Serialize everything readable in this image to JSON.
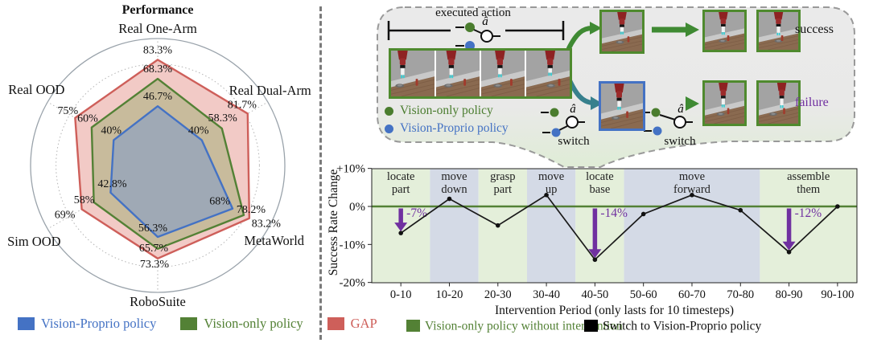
{
  "chart_data": [
    {
      "type": "radar",
      "title": "Performance",
      "axes": [
        "Real One-Arm",
        "Real Dual-Arm",
        "MetaWorld",
        "RoboSuite",
        "Sim OOD",
        "Real OOD"
      ],
      "max": 100,
      "series": [
        {
          "name": "Vision-Proprio policy",
          "color": "#4472C4",
          "fill": "#9FA9B5",
          "values": [
            46.7,
            40,
            68,
            56.3,
            42.8,
            40
          ],
          "value_labels": [
            "46.7%",
            "40%",
            "68%",
            "56.3%",
            "42.8%",
            "40%"
          ]
        },
        {
          "name": "Vision-only policy",
          "color": "#538135",
          "fill": "#C8BB9C",
          "values": [
            68.3,
            58.3,
            78.2,
            65.7,
            58,
            60
          ],
          "value_labels": [
            "68.3%",
            "58.3%",
            "78.2%",
            "65.7%",
            "58%",
            "60%"
          ]
        },
        {
          "name": "GAP",
          "color": "#CE5F5A",
          "fill": "#F2CAC6",
          "values": [
            83.3,
            81.7,
            83.2,
            73.3,
            69,
            75
          ],
          "value_labels": [
            "83.3%",
            "81.7%",
            "83.2%",
            "73.3%",
            "69%",
            "75%"
          ]
        }
      ],
      "label_offsets": [
        [
          [
            0,
            -8
          ],
          [
            -4,
            -8
          ],
          [
            -16,
            -5
          ],
          [
            -6,
            -7
          ],
          [
            2,
            -7
          ],
          [
            -3,
            -8
          ]
        ],
        [
          [
            0,
            -8
          ],
          [
            1,
            -9
          ],
          [
            9,
            -3
          ],
          [
            -5,
            3
          ],
          [
            -12,
            1
          ],
          [
            -5,
            -7
          ]
        ],
        [
          [
            0,
            -8
          ],
          [
            -7,
            -7
          ],
          [
            21,
            11
          ],
          [
            -4,
            11
          ],
          [
            -21,
            11
          ],
          [
            -9,
            -5
          ]
        ]
      ],
      "grid": "dotted rings + dotted spokes, outer solid circle",
      "legend_position": "bottom"
    },
    {
      "type": "line",
      "ylabel": "Success Rate Change",
      "xlabel": "Intervention Period (only lasts for 10 timesteps)",
      "categories": [
        "0-10",
        "10-20",
        "20-30",
        "30-40",
        "40-50",
        "50-60",
        "60-70",
        "70-80",
        "80-90",
        "90-100"
      ],
      "values": [
        -7,
        2,
        -5,
        3,
        -14,
        -2,
        3,
        -1,
        -12,
        0
      ],
      "ylim": [
        -20,
        10
      ],
      "yticks": [
        {
          "label": "+10%",
          "value": 10
        },
        {
          "label": "0%",
          "value": 0
        },
        {
          "label": "-10%",
          "value": -10
        },
        {
          "label": "-20%",
          "value": -20
        }
      ],
      "zero_line_color": "#538135",
      "line_color": "#1a1a1a",
      "band_colors": {
        "green": "#e4efda",
        "blue": "#d4dae6"
      },
      "phases": [
        {
          "label": "locate part",
          "band": "green",
          "from": 0,
          "to": 1.2
        },
        {
          "label": "move down",
          "band": "blue",
          "from": 1.2,
          "to": 2.2
        },
        {
          "label": "grasp part",
          "band": "green",
          "from": 2.2,
          "to": 3.2
        },
        {
          "label": "move up",
          "band": "blue",
          "from": 3.2,
          "to": 4.2
        },
        {
          "label": "locate base",
          "band": "green",
          "from": 4.2,
          "to": 5.2
        },
        {
          "label": "move forward",
          "band": "blue",
          "from": 5.2,
          "to": 8
        },
        {
          "label": "assemble them",
          "band": "green",
          "from": 8,
          "to": 10
        }
      ],
      "annotation_color": "#7030A0",
      "annotations": [
        {
          "index": 0,
          "label": "-7%"
        },
        {
          "index": 4,
          "label": "-14%"
        },
        {
          "index": 8,
          "label": "-12%"
        }
      ],
      "legend": [
        {
          "label": "Vision-only policy without intervention",
          "color": "#538135",
          "text_color": "#538135"
        },
        {
          "label": "Switch to Vision-Proprio policy",
          "color": "#000000",
          "text_color": "#111111"
        }
      ]
    }
  ],
  "callout": {
    "executed_action_label": "executed action",
    "action_symbol": "â",
    "switch_label": "switch",
    "success_label": "success",
    "failure_label": "failure",
    "failure_color": "#7030A0",
    "success_color": "#111111",
    "arrow_green": "#3f8a33",
    "arrow_teal": "#37808d",
    "legend": [
      {
        "label": "Vision-only policy",
        "color": "#4a7d2e"
      },
      {
        "label": "Vision-Proprio policy",
        "color": "#4472C4"
      }
    ]
  }
}
